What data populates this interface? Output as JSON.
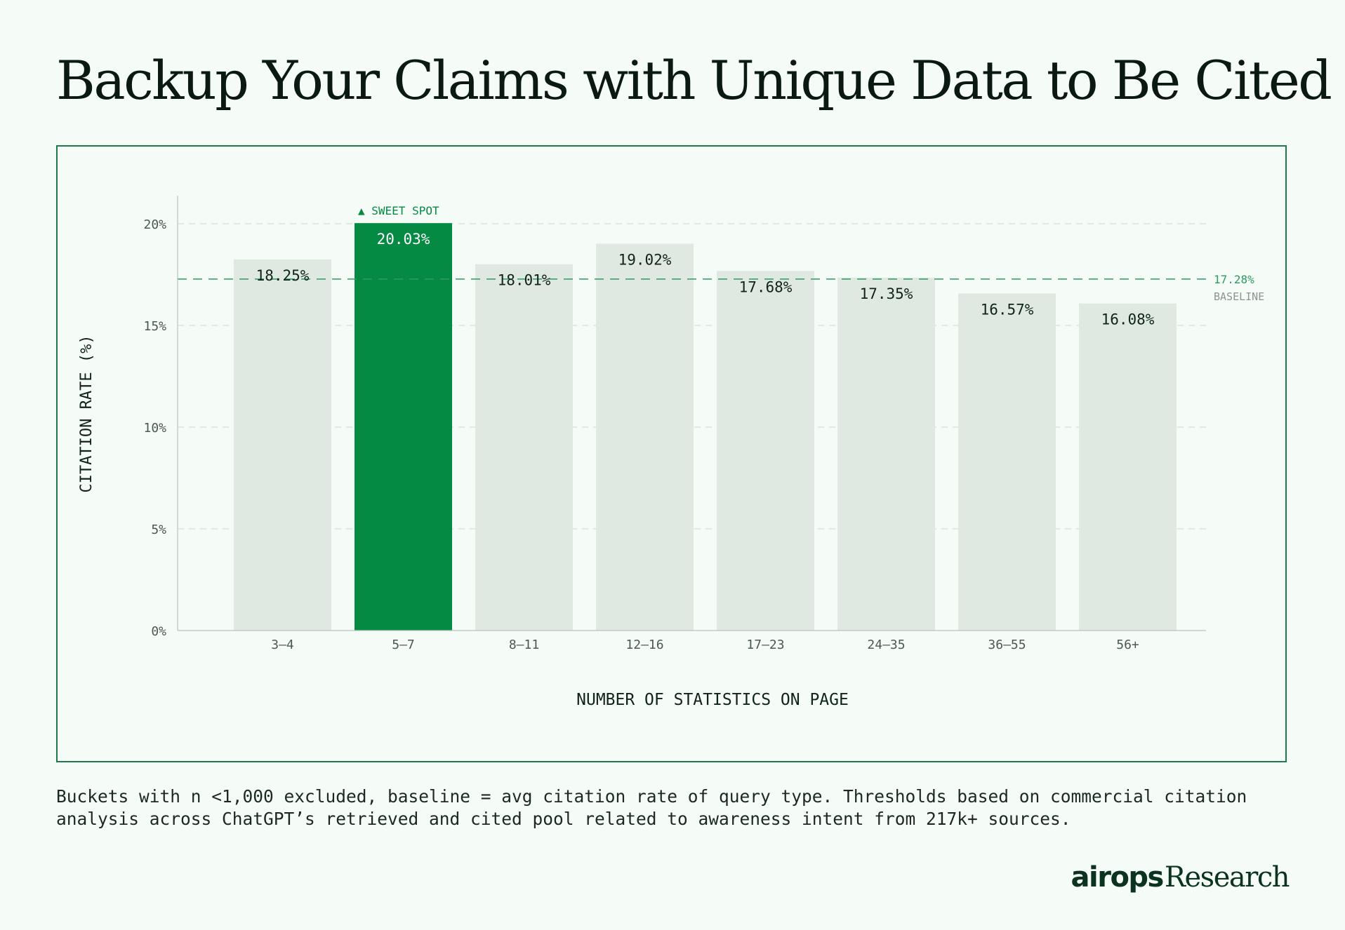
{
  "page": {
    "title": "Backup Your Claims with Unique Data to Be Cited",
    "footnote": "Buckets with n <1,000 excluded, baseline = avg citation rate of query type. Thresholds based on commercial citation analysis across ChatGPT’s retrieved and cited pool related to awareness intent from 217k+ sources.",
    "brand": {
      "logo": "airops",
      "suffix": "Research"
    }
  },
  "chart_data": {
    "type": "bar",
    "categories": [
      "3–4",
      "5–7",
      "8–11",
      "12–16",
      "17–23",
      "24–35",
      "36–55",
      "56+"
    ],
    "values": [
      18.25,
      20.03,
      18.01,
      19.02,
      17.68,
      17.35,
      16.57,
      16.08
    ],
    "value_labels": [
      "18.25%",
      "20.03%",
      "18.01%",
      "19.02%",
      "17.68%",
      "17.35%",
      "16.57%",
      "16.08%"
    ],
    "highlight_index": 1,
    "highlight_annotation": "▲ SWEET SPOT",
    "baseline": {
      "value": 17.28,
      "label": "17.28%",
      "caption": "BASELINE"
    },
    "xlabel": "NUMBER OF STATISTICS ON PAGE",
    "ylabel": "CITATION RATE (%)",
    "ylim": [
      0,
      22
    ],
    "yticks": [
      0,
      5,
      10,
      15,
      20
    ],
    "ytick_labels": [
      "0%",
      "5%",
      "10%",
      "15%",
      "20%"
    ],
    "grid": true,
    "colors": {
      "bar": "#dfe9e2",
      "highlight": "#058a44",
      "baseline": "#2e9a5f",
      "grid": "#d6ddd9",
      "axis": "#b8c4bd",
      "tick_text": "#4a5a52",
      "label_text": "#0f2418",
      "baseline_caption": "#8a9690"
    }
  }
}
